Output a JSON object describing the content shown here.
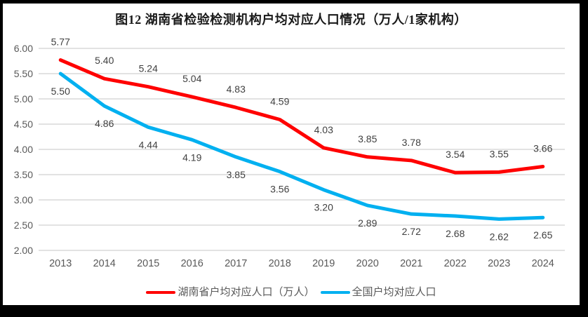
{
  "title": "图12 湖南省检验检测机构户均对应人口情况（万人/1家机构）",
  "colors": {
    "hunan_line": "#ff0000",
    "national_line": "#00b0f0",
    "gridline": "#d9d9d9",
    "axis_text": "#595959",
    "data_label_text": "#404040",
    "title_text": "#1a1a1a",
    "frame_border": "#000000",
    "background": "#ffffff"
  },
  "chart_data": {
    "type": "line",
    "title": "图12 湖南省检验检测机构户均对应人口情况（万人/1家机构）",
    "categories": [
      "2013",
      "2014",
      "2015",
      "2016",
      "2017",
      "2018",
      "2019",
      "2020",
      "2021",
      "2022",
      "2023",
      "2024"
    ],
    "series": [
      {
        "name": "湖南省户均对应人口（万人）",
        "color": "#ff0000",
        "values": [
          5.77,
          5.4,
          5.24,
          5.04,
          4.83,
          4.59,
          4.03,
          3.85,
          3.78,
          3.54,
          3.55,
          3.66
        ],
        "label_position": "above"
      },
      {
        "name": "全国户均对应人口",
        "color": "#00b0f0",
        "values": [
          5.5,
          4.86,
          4.44,
          4.19,
          3.85,
          3.56,
          3.2,
          2.89,
          2.72,
          2.68,
          2.62,
          2.65
        ],
        "label_position": "below"
      }
    ],
    "xlabel": "",
    "ylabel": "",
    "ylim": [
      2.0,
      6.0
    ],
    "ytick_step": 0.5,
    "ytick_labels": [
      "2.00",
      "2.50",
      "3.00",
      "3.50",
      "4.00",
      "4.50",
      "5.00",
      "5.50",
      "6.00"
    ],
    "grid": true,
    "legend_position": "bottom",
    "value_label_decimals": 2
  }
}
